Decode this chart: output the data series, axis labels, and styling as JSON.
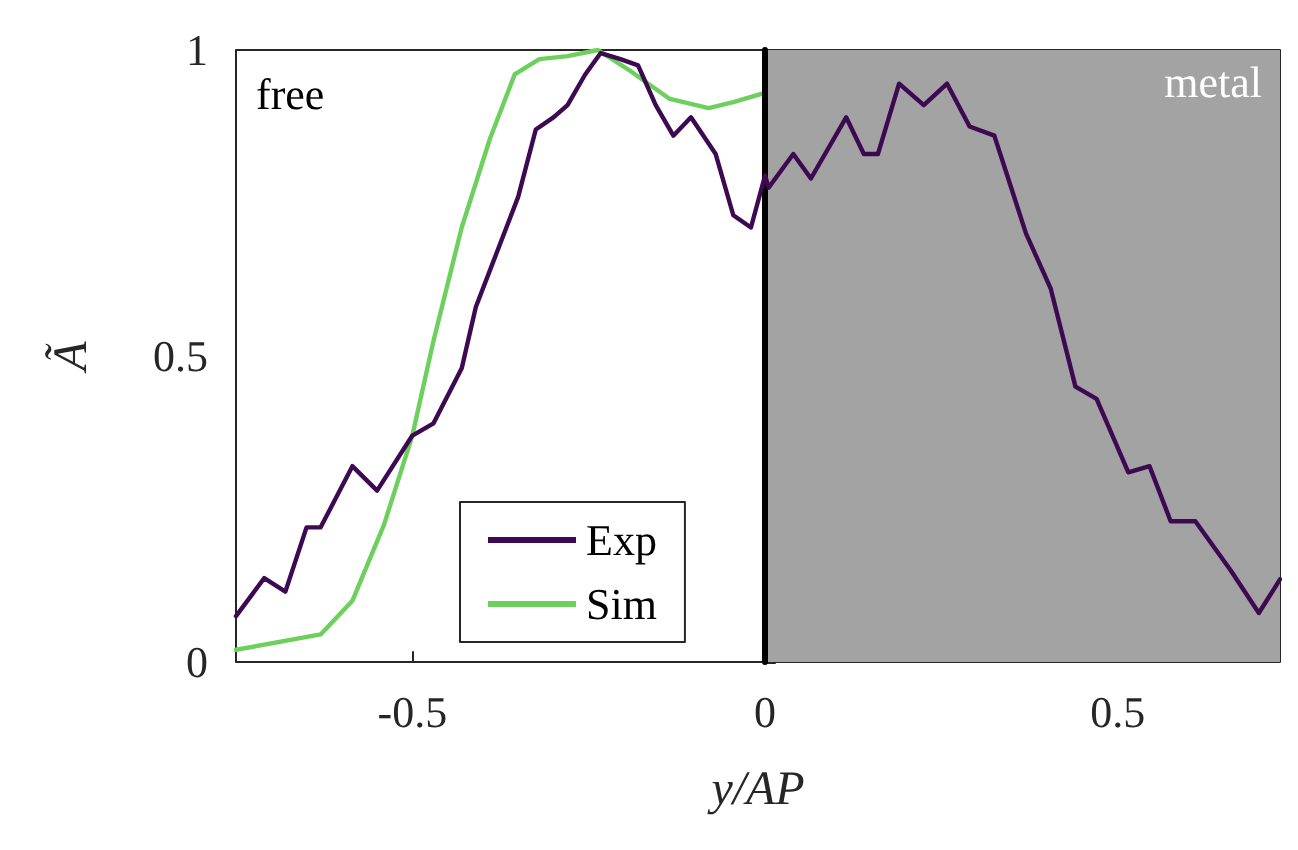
{
  "chart_data": {
    "type": "line",
    "xlabel": "y/AP",
    "ylabel": "Ã",
    "xlim": [
      -0.75,
      0.73
    ],
    "ylim": [
      0,
      1
    ],
    "xticks": [
      -0.5,
      0,
      0.5
    ],
    "yticks": [
      0,
      0.5,
      1
    ],
    "grid": false,
    "legend": "bottom left",
    "marker": "none",
    "line_style": "solid",
    "annotations": [
      "free"
    ],
    "bands": [
      {
        "axis": "x",
        "from": 0,
        "to": 0.73,
        "label": "metal",
        "color": "#a3a3a3"
      }
    ],
    "ref_lines": [
      {
        "axis": "x",
        "value": 0,
        "color": "#000000"
      }
    ],
    "series": [
      {
        "name": "Exp",
        "color": "#3d0a52",
        "x": [
          -0.75,
          -0.71,
          -0.68,
          -0.65,
          -0.63,
          -0.585,
          -0.55,
          -0.5,
          -0.47,
          -0.43,
          -0.41,
          -0.385,
          -0.35,
          -0.325,
          -0.3,
          -0.28,
          -0.255,
          -0.233,
          -0.205,
          -0.18,
          -0.155,
          -0.13,
          -0.105,
          -0.07,
          -0.045,
          -0.02,
          0,
          0.005,
          0.04,
          0.065,
          0.115,
          0.14,
          0.16,
          0.19,
          0.225,
          0.258,
          0.29,
          0.325,
          0.37,
          0.405,
          0.44,
          0.47,
          0.515,
          0.545,
          0.575,
          0.61,
          0.66,
          0.7,
          0.73
        ],
        "values": [
          0.075,
          0.137,
          0.115,
          0.22,
          0.22,
          0.32,
          0.28,
          0.37,
          0.39,
          0.48,
          0.58,
          0.655,
          0.76,
          0.87,
          0.89,
          0.91,
          0.96,
          0.995,
          0.985,
          0.975,
          0.91,
          0.86,
          0.89,
          0.83,
          0.73,
          0.71,
          0.795,
          0.775,
          0.83,
          0.79,
          0.89,
          0.83,
          0.83,
          0.945,
          0.91,
          0.945,
          0.875,
          0.86,
          0.7,
          0.61,
          0.45,
          0.43,
          0.31,
          0.32,
          0.23,
          0.23,
          0.15,
          0.08,
          0.135
        ]
      },
      {
        "name": "Sim",
        "color": "#6dd05c",
        "x": [
          -0.75,
          -0.63,
          -0.585,
          -0.54,
          -0.5,
          -0.47,
          -0.43,
          -0.39,
          -0.355,
          -0.32,
          -0.28,
          -0.237,
          -0.19,
          -0.135,
          -0.08,
          -0.045,
          0
        ],
        "values": [
          0.02,
          0.045,
          0.1,
          0.225,
          0.37,
          0.525,
          0.71,
          0.855,
          0.96,
          0.985,
          0.99,
          1,
          0.965,
          0.92,
          0.905,
          0.915,
          0.93
        ]
      }
    ]
  }
}
